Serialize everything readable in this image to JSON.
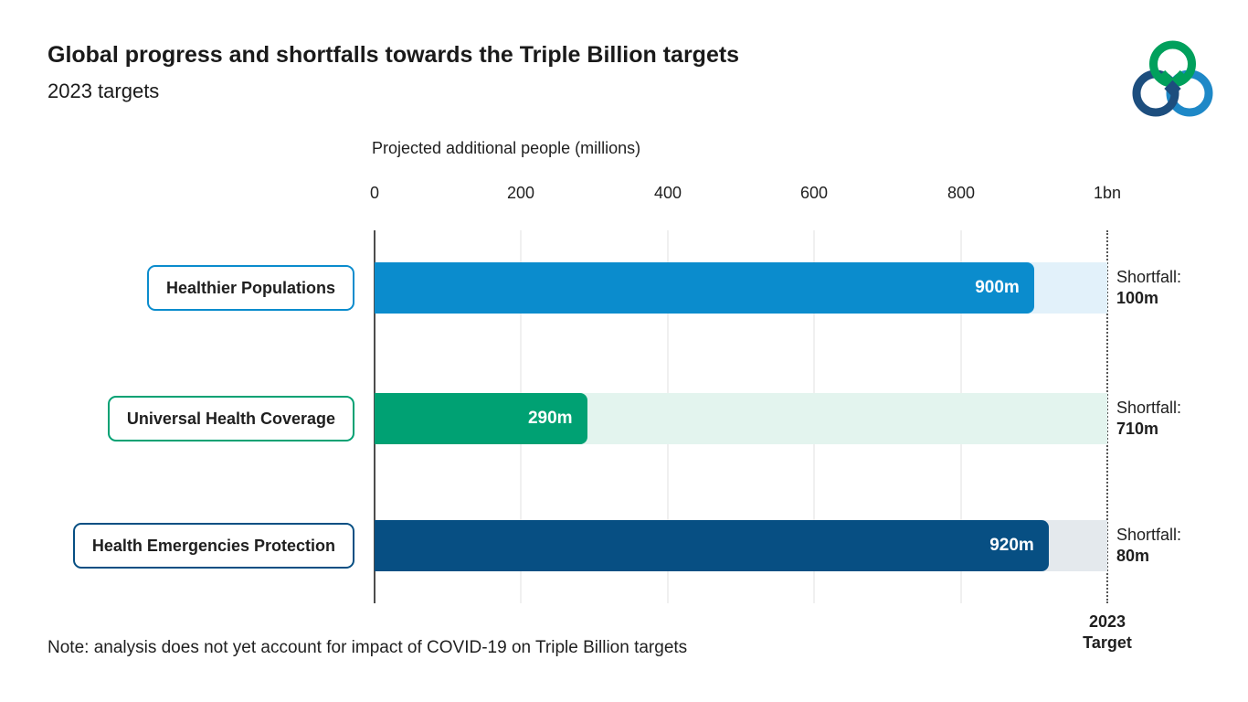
{
  "header": {
    "title": "Global progress and shortfalls towards the Triple Billion targets",
    "subtitle": "2023 targets"
  },
  "chart_data": {
    "type": "bar",
    "orientation": "horizontal",
    "axis_title": "Projected additional people (millions)",
    "xlim": [
      0,
      1000
    ],
    "tick_values": [
      0,
      200,
      400,
      600,
      800,
      1000
    ],
    "tick_labels": [
      "0",
      "200",
      "400",
      "600",
      "800",
      "1bn"
    ],
    "grid": true,
    "target_line": {
      "value": 1000,
      "label_line1": "2023",
      "label_line2": "Target"
    },
    "rows": [
      {
        "category": "Healthier Populations",
        "value": 900,
        "value_label": "900m",
        "shortfall_prefix": "Shortfall:",
        "shortfall_value": 100,
        "shortfall_label": "100m",
        "bar_color": "#0b8ccd",
        "track_color": "#e2f1fa"
      },
      {
        "category": "Universal Health Coverage",
        "value": 290,
        "value_label": "290m",
        "shortfall_prefix": "Shortfall:",
        "shortfall_value": 710,
        "shortfall_label": "710m",
        "bar_color": "#00a173",
        "track_color": "#e3f4ee"
      },
      {
        "category": "Health Emergencies Protection",
        "value": 920,
        "value_label": "920m",
        "shortfall_prefix": "Shortfall:",
        "shortfall_value": 80,
        "shortfall_label": "80m",
        "bar_color": "#074f83",
        "track_color": "#e4e9ed"
      }
    ]
  },
  "colors": {
    "axis_line": "#4d4d4d",
    "gridline": "#f0f0f0",
    "target_line": "#555555",
    "text": "#1f1f1f",
    "logo_green": "#00a05c",
    "logo_dark_blue": "#1d4e7e",
    "logo_light_blue": "#1e88c7"
  },
  "note": "Note: analysis does not yet account for impact of COVID-19 on Triple Billion targets"
}
